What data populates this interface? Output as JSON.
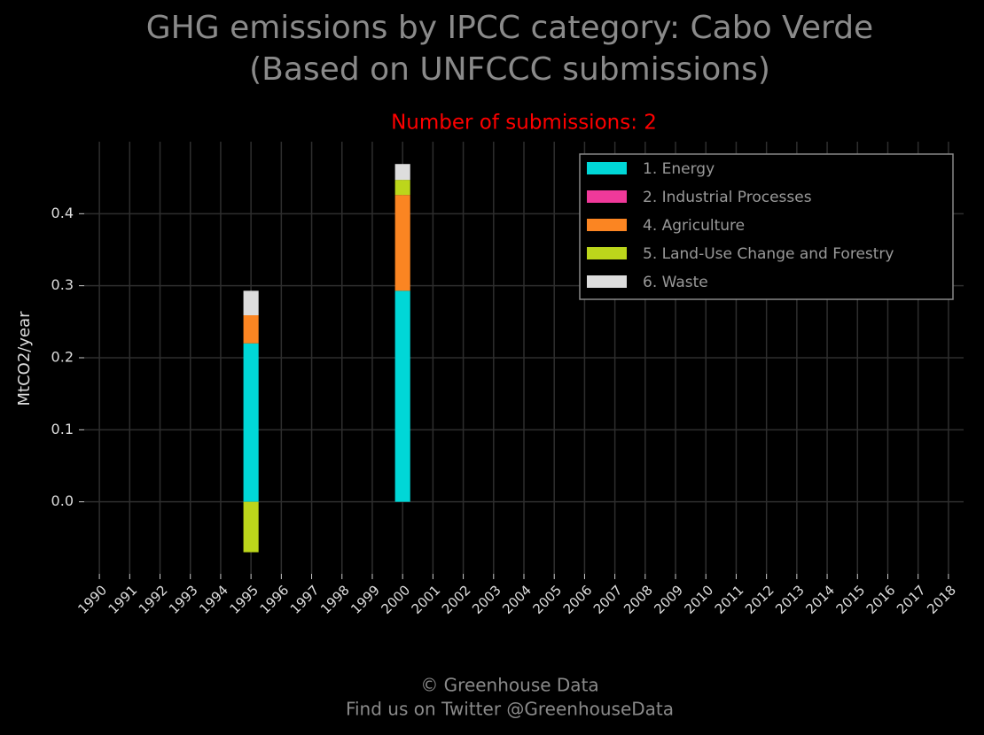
{
  "chart_data": {
    "type": "stacked_bar",
    "title": "GHG emissions by IPCC category: Cabo Verde",
    "title_line2": "(Based on UNFCCC submissions)",
    "subtitle": "Number of submissions: 2",
    "y_label": "MtCO2/year",
    "categories": [
      "1990",
      "1991",
      "1992",
      "1993",
      "1994",
      "1995",
      "1996",
      "1997",
      "1998",
      "1999",
      "2000",
      "2001",
      "2002",
      "2003",
      "2004",
      "2005",
      "2006",
      "2007",
      "2008",
      "2009",
      "2010",
      "2011",
      "2012",
      "2013",
      "2014",
      "2015",
      "2016",
      "2017",
      "2018"
    ],
    "series": [
      {
        "name": "1. Energy",
        "color": "#00d7d7",
        "values": [
          null,
          null,
          null,
          null,
          null,
          0.22,
          null,
          null,
          null,
          null,
          0.293,
          null,
          null,
          null,
          null,
          null,
          null,
          null,
          null,
          null,
          null,
          null,
          null,
          null,
          null,
          null,
          null,
          null,
          null
        ]
      },
      {
        "name": "2. Industrial Processes",
        "color": "#f0399a",
        "values": [
          null,
          null,
          null,
          null,
          null,
          null,
          null,
          null,
          null,
          null,
          null,
          null,
          null,
          null,
          null,
          null,
          null,
          null,
          null,
          null,
          null,
          null,
          null,
          null,
          null,
          null,
          null,
          null,
          null
        ]
      },
      {
        "name": "4. Agriculture",
        "color": "#fb8522",
        "values": [
          null,
          null,
          null,
          null,
          null,
          0.039,
          null,
          null,
          null,
          null,
          0.133,
          null,
          null,
          null,
          null,
          null,
          null,
          null,
          null,
          null,
          null,
          null,
          null,
          null,
          null,
          null,
          null,
          null,
          null
        ]
      },
      {
        "name": "5. Land-Use Change and Forestry",
        "color": "#bcd61b",
        "values": [
          null,
          null,
          null,
          null,
          null,
          -0.07,
          null,
          null,
          null,
          null,
          0.021,
          null,
          null,
          null,
          null,
          null,
          null,
          null,
          null,
          null,
          null,
          null,
          null,
          null,
          null,
          null,
          null,
          null,
          null
        ]
      },
      {
        "name": "6. Waste",
        "color": "#dddddd",
        "values": [
          null,
          null,
          null,
          null,
          null,
          0.034,
          null,
          null,
          null,
          null,
          0.022,
          null,
          null,
          null,
          null,
          null,
          null,
          null,
          null,
          null,
          null,
          null,
          null,
          null,
          null,
          null,
          null,
          null,
          null
        ]
      }
    ],
    "ylim": [
      -0.1,
      0.5
    ],
    "yticks": [
      {
        "value": 0,
        "label": "0.0"
      },
      0.1,
      0.2,
      0.3,
      0.4
    ],
    "grid": true,
    "legend": "upper right",
    "footer": [
      "© Greenhouse Data",
      "Find us on Twitter @GreenhouseData"
    ]
  }
}
